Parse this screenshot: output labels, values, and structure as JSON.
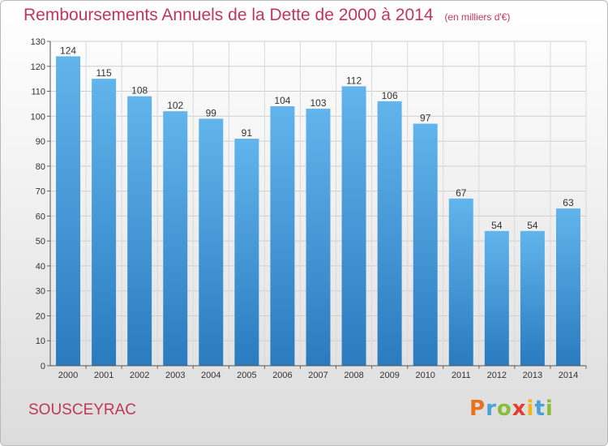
{
  "chart_data": {
    "type": "bar",
    "title": "Remboursements Annuels de la Dette de 2000 à 2014",
    "unit": "(en milliers d'€)",
    "categories": [
      "2000",
      "2001",
      "2002",
      "2003",
      "2004",
      "2005",
      "2006",
      "2007",
      "2008",
      "2009",
      "2010",
      "2011",
      "2012",
      "2013",
      "2014"
    ],
    "values": [
      124,
      115,
      108,
      102,
      99,
      91,
      104,
      103,
      112,
      106,
      97,
      67,
      54,
      54,
      63
    ],
    "ylim": [
      0,
      130
    ],
    "yticks": [
      0,
      10,
      20,
      30,
      40,
      50,
      60,
      70,
      80,
      90,
      100,
      110,
      120,
      130
    ],
    "grid": true,
    "colors": {
      "bar_light": "#62b4ec",
      "bar_dark": "#2a7bbf",
      "title": "#c0365e"
    }
  },
  "commune": "SOUSCEYRAC",
  "logo": {
    "letters": [
      {
        "ch": "P",
        "color": "#e8731f"
      },
      {
        "ch": "r",
        "color": "#4aa3d8"
      },
      {
        "ch": "o",
        "color": "#8bbd3c"
      },
      {
        "ch": "x",
        "color": "#e33d2e"
      },
      {
        "ch": "i",
        "color": "#f2b51c"
      },
      {
        "ch": "t",
        "color": "#4aa3d8"
      },
      {
        "ch": "i",
        "color": "#8bbd3c"
      }
    ]
  }
}
